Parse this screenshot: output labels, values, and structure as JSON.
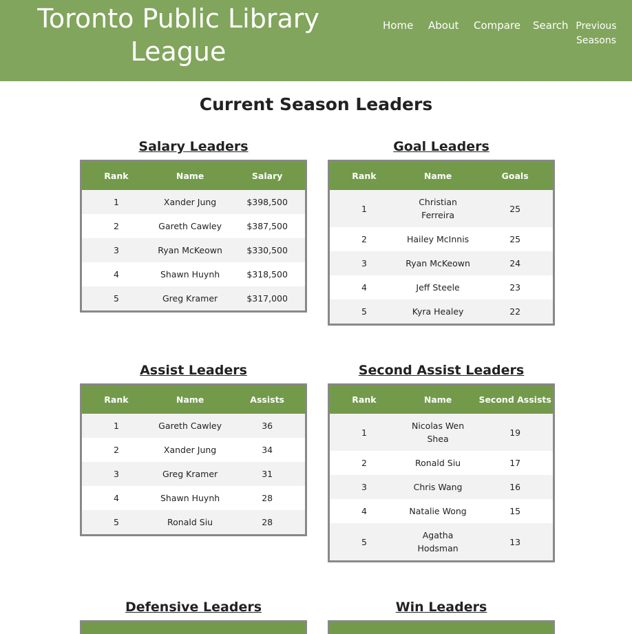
{
  "header": {
    "site_title_line1": "Toronto Public Library",
    "site_title_line2": "League",
    "nav": [
      "Home",
      "About",
      "Compare",
      "Search"
    ],
    "nav_previous_line1": "Previous",
    "nav_previous_line2": "Seasons"
  },
  "page_title": "Current Season Leaders",
  "tables": {
    "salary": {
      "title": "Salary Leaders",
      "headers": [
        "Rank",
        "Name",
        "Salary"
      ],
      "rows": [
        {
          "rank": "1",
          "name": [
            "Xander Jung"
          ],
          "value": "$398,500"
        },
        {
          "rank": "2",
          "name": [
            "Gareth Cawley"
          ],
          "value": "$387,500"
        },
        {
          "rank": "3",
          "name": [
            "Ryan McKeown"
          ],
          "value": "$330,500"
        },
        {
          "rank": "4",
          "name": [
            "Shawn Huynh"
          ],
          "value": "$318,500"
        },
        {
          "rank": "5",
          "name": [
            "Greg Kramer"
          ],
          "value": "$317,000"
        }
      ]
    },
    "goals": {
      "title": "Goal Leaders",
      "headers": [
        "Rank",
        "Name",
        "Goals"
      ],
      "rows": [
        {
          "rank": "1",
          "name": [
            "Christian",
            "Ferreira"
          ],
          "value": "25"
        },
        {
          "rank": "2",
          "name": [
            "Hailey McInnis"
          ],
          "value": "25"
        },
        {
          "rank": "3",
          "name": [
            "Ryan McKeown"
          ],
          "value": "24"
        },
        {
          "rank": "4",
          "name": [
            "Jeff Steele"
          ],
          "value": "23"
        },
        {
          "rank": "5",
          "name": [
            "Kyra Healey"
          ],
          "value": "22"
        }
      ]
    },
    "assists": {
      "title": "Assist Leaders",
      "headers": [
        "Rank",
        "Name",
        "Assists"
      ],
      "rows": [
        {
          "rank": "1",
          "name": [
            "Gareth Cawley"
          ],
          "value": "36"
        },
        {
          "rank": "2",
          "name": [
            "Xander Jung"
          ],
          "value": "34"
        },
        {
          "rank": "3",
          "name": [
            "Greg Kramer"
          ],
          "value": "31"
        },
        {
          "rank": "4",
          "name": [
            "Shawn Huynh"
          ],
          "value": "28"
        },
        {
          "rank": "5",
          "name": [
            "Ronald Siu"
          ],
          "value": "28"
        }
      ]
    },
    "second_assists": {
      "title": "Second Assist Leaders",
      "headers": [
        "Rank",
        "Name",
        "Second Assists"
      ],
      "rows": [
        {
          "rank": "1",
          "name": [
            "Nicolas Wen",
            "Shea"
          ],
          "value": "19"
        },
        {
          "rank": "2",
          "name": [
            "Ronald Siu"
          ],
          "value": "17"
        },
        {
          "rank": "3",
          "name": [
            "Chris Wang"
          ],
          "value": "16"
        },
        {
          "rank": "4",
          "name": [
            "Natalie Wong"
          ],
          "value": "15"
        },
        {
          "rank": "5",
          "name": [
            "Agatha",
            "Hodsman"
          ],
          "value": "13"
        }
      ]
    },
    "defensive": {
      "title": "Defensive Leaders"
    },
    "wins": {
      "title": "Win Leaders"
    }
  },
  "colors": {
    "header_bg": "#81a55c",
    "table_header_bg": "#729a4a",
    "row_alt_bg": "#f2f2f2",
    "table_border": "#888888"
  }
}
